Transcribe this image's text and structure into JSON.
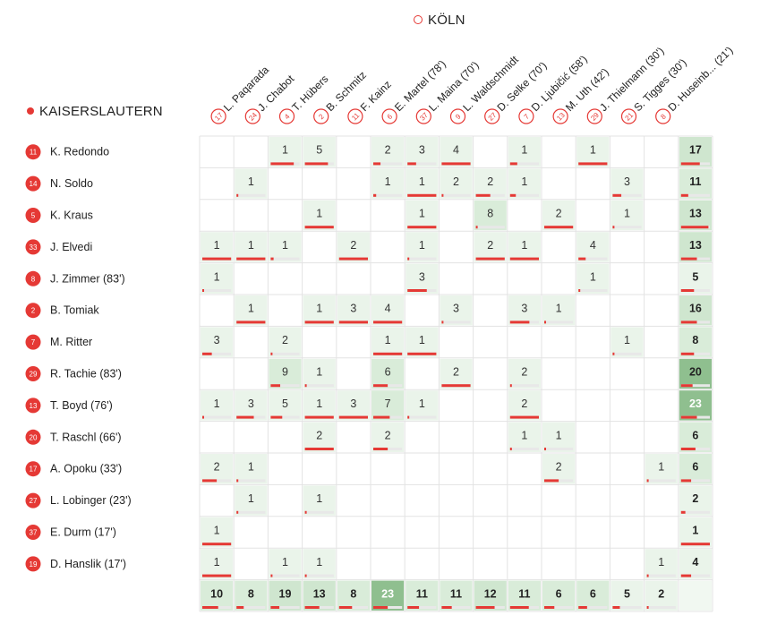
{
  "teams": {
    "away": {
      "name": "KÖLN",
      "marker": "open-circle"
    },
    "home": {
      "name": "KAISERSLAUTERN",
      "marker": "filled-circle"
    }
  },
  "colors": {
    "accent": "#e53935",
    "cell_low": "#eaf4ea",
    "cell_mid": "#cfe6cf",
    "cell_high": "#8fbf8f",
    "grid": "#e3e3e3",
    "bar_track": "#e8e8e8"
  },
  "chart_data": {
    "type": "heatmap",
    "columns": [
      {
        "number": "17",
        "label": "L. Paqarada"
      },
      {
        "number": "24",
        "label": "J. Chabot"
      },
      {
        "number": "4",
        "label": "T. Hübers"
      },
      {
        "number": "2",
        "label": "B. Schmitz"
      },
      {
        "number": "11",
        "label": "F. Kainz"
      },
      {
        "number": "6",
        "label": "E. Martel (78')"
      },
      {
        "number": "37",
        "label": "L. Maina (70')"
      },
      {
        "number": "9",
        "label": "L. Waldschmidt"
      },
      {
        "number": "27",
        "label": "D. Selke (70')"
      },
      {
        "number": "7",
        "label": "D. Ljubičić (58')"
      },
      {
        "number": "13",
        "label": "M. Uth (42')"
      },
      {
        "number": "29",
        "label": "J. Thielmann (30')"
      },
      {
        "number": "21",
        "label": "S. Tigges (30')"
      },
      {
        "number": "8",
        "label": "D. Huseinb... (21')"
      }
    ],
    "rows": [
      {
        "number": "11",
        "label": "K. Redondo"
      },
      {
        "number": "14",
        "label": "N. Soldo"
      },
      {
        "number": "5",
        "label": "K. Kraus"
      },
      {
        "number": "33",
        "label": "J. Elvedi"
      },
      {
        "number": "8",
        "label": "J. Zimmer (83')"
      },
      {
        "number": "2",
        "label": "B. Tomiak"
      },
      {
        "number": "7",
        "label": "M. Ritter"
      },
      {
        "number": "29",
        "label": "R. Tachie (83')"
      },
      {
        "number": "13",
        "label": "T. Boyd (76')"
      },
      {
        "number": "20",
        "label": "T. Raschl (66')"
      },
      {
        "number": "17",
        "label": "A. Opoku (33')"
      },
      {
        "number": "27",
        "label": "L. Lobinger (23')"
      },
      {
        "number": "37",
        "label": "E. Durm (17')"
      },
      {
        "number": "19",
        "label": "D. Hanslik (17')"
      }
    ],
    "cells": [
      [
        null,
        null,
        1,
        5,
        null,
        2,
        3,
        4,
        null,
        1,
        null,
        1,
        null,
        null
      ],
      [
        null,
        1,
        null,
        null,
        null,
        1,
        1,
        2,
        2,
        1,
        null,
        null,
        3,
        null
      ],
      [
        null,
        null,
        null,
        1,
        null,
        null,
        1,
        null,
        8,
        null,
        2,
        null,
        1,
        null
      ],
      [
        1,
        1,
        1,
        null,
        2,
        null,
        1,
        null,
        2,
        1,
        null,
        4,
        null,
        null
      ],
      [
        1,
        null,
        null,
        null,
        null,
        null,
        3,
        null,
        null,
        null,
        null,
        1,
        null,
        null
      ],
      [
        null,
        1,
        null,
        1,
        3,
        4,
        null,
        3,
        null,
        3,
        1,
        null,
        null,
        null
      ],
      [
        3,
        null,
        2,
        null,
        null,
        1,
        1,
        null,
        null,
        null,
        null,
        null,
        1,
        null
      ],
      [
        null,
        null,
        9,
        1,
        null,
        6,
        null,
        2,
        null,
        2,
        null,
        null,
        null,
        null
      ],
      [
        1,
        3,
        5,
        1,
        3,
        7,
        1,
        null,
        null,
        2,
        null,
        null,
        null,
        null
      ],
      [
        null,
        null,
        null,
        2,
        null,
        2,
        null,
        null,
        null,
        1,
        1,
        null,
        null,
        null
      ],
      [
        2,
        1,
        null,
        null,
        null,
        null,
        null,
        null,
        null,
        null,
        2,
        null,
        null,
        1
      ],
      [
        null,
        1,
        null,
        1,
        null,
        null,
        null,
        null,
        null,
        null,
        null,
        null,
        null,
        null
      ],
      [
        1,
        null,
        null,
        null,
        null,
        null,
        null,
        null,
        null,
        null,
        null,
        null,
        null,
        null
      ],
      [
        1,
        null,
        1,
        1,
        null,
        null,
        null,
        null,
        null,
        null,
        null,
        null,
        null,
        1
      ]
    ],
    "cell_bars": [
      [
        null,
        null,
        0.8,
        0.8,
        null,
        0.25,
        0.3,
        1.0,
        null,
        0.25,
        null,
        1.0,
        null,
        null
      ],
      [
        null,
        0.0,
        null,
        null,
        null,
        0.1,
        1.0,
        0.0,
        0.5,
        0.2,
        null,
        null,
        0.3,
        null
      ],
      [
        null,
        null,
        null,
        1.0,
        null,
        null,
        1.0,
        null,
        0.0,
        null,
        1.0,
        null,
        0.0,
        null
      ],
      [
        1.0,
        1.0,
        0.1,
        null,
        1.0,
        null,
        0.0,
        null,
        1.0,
        1.0,
        null,
        0.25,
        null,
        null
      ],
      [
        0.0,
        null,
        null,
        null,
        null,
        null,
        0.67,
        null,
        null,
        null,
        null,
        0.0,
        null,
        null
      ],
      [
        null,
        1.0,
        null,
        1.0,
        1.0,
        1.0,
        null,
        0.0,
        null,
        0.67,
        0.0,
        null,
        null,
        null
      ],
      [
        0.33,
        null,
        0.0,
        null,
        null,
        1.0,
        1.0,
        null,
        null,
        null,
        null,
        null,
        0.0,
        null
      ],
      [
        null,
        null,
        0.33,
        0.0,
        null,
        0.5,
        null,
        1.0,
        null,
        0.0,
        null,
        null,
        null,
        null
      ],
      [
        0.0,
        0.6,
        0.4,
        1.0,
        1.0,
        0.57,
        0.0,
        null,
        null,
        1.0,
        null,
        null,
        null,
        null
      ],
      [
        null,
        null,
        null,
        1.0,
        null,
        0.5,
        null,
        null,
        null,
        0.0,
        0.0,
        null,
        null,
        null
      ],
      [
        0.5,
        0.0,
        null,
        null,
        null,
        null,
        null,
        null,
        null,
        null,
        0.5,
        null,
        null,
        0.0
      ],
      [
        null,
        0.0,
        null,
        0.0,
        null,
        null,
        null,
        null,
        null,
        null,
        null,
        null,
        null,
        null
      ],
      [
        1.0,
        null,
        null,
        null,
        null,
        null,
        null,
        null,
        null,
        null,
        null,
        null,
        null,
        null
      ],
      [
        1.0,
        null,
        0.0,
        0.0,
        null,
        null,
        null,
        null,
        null,
        null,
        null,
        null,
        null,
        0.0
      ]
    ],
    "row_totals": [
      17,
      11,
      13,
      13,
      5,
      16,
      8,
      20,
      23,
      6,
      6,
      2,
      1,
      4
    ],
    "row_total_bars": [
      0.65,
      0.25,
      0.95,
      0.55,
      0.45,
      0.55,
      0.45,
      0.4,
      0.55,
      0.5,
      0.35,
      0.15,
      1.0,
      0.35
    ],
    "col_totals": [
      10,
      8,
      19,
      13,
      8,
      23,
      11,
      11,
      12,
      11,
      6,
      6,
      5,
      2
    ],
    "col_total_bars": [
      0.55,
      0.25,
      0.3,
      0.5,
      0.45,
      0.5,
      0.4,
      0.35,
      0.65,
      0.65,
      0.35,
      0.3,
      0.25,
      0.0
    ]
  }
}
